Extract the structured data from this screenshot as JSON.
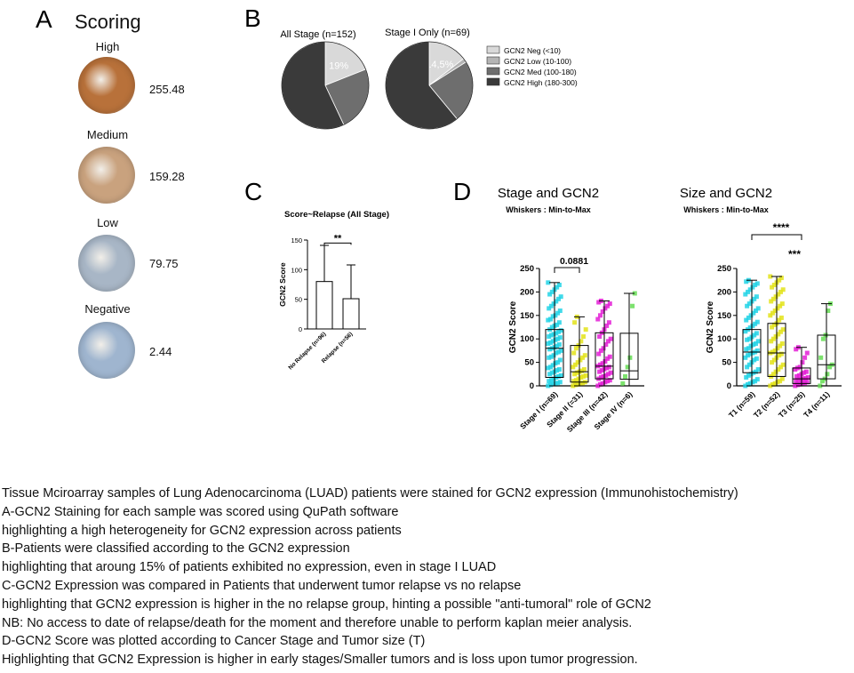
{
  "panel_a": {
    "letter": "A",
    "title": "Scoring",
    "samples": [
      {
        "label": "High",
        "score": "255.48",
        "color": "#b8713a"
      },
      {
        "label": "Medium",
        "score": "159.28",
        "color": "#c9a27e"
      },
      {
        "label": "Low",
        "score": "79.75",
        "color": "#a8b6c6"
      },
      {
        "label": "Negative",
        "score": "2.44",
        "color": "#9fb5cf"
      }
    ]
  },
  "panel_b": {
    "letter": "B"
  },
  "panel_c": {
    "letter": "C"
  },
  "panel_d": {
    "letter": "D"
  },
  "chart_data": [
    {
      "type": "pie",
      "title": "All Stage (n=152)",
      "categories": [
        "GCN2 Neg (<10)",
        "GCN2 Low (10-100)",
        "GCN2 Med (100-180)",
        "GCN2 High (180-300)"
      ],
      "values": [
        19,
        0,
        24,
        57
      ],
      "slice_labels": [
        "19%",
        "",
        "",
        ""
      ],
      "colors": [
        "#d9d9d9",
        "#b4b4b4",
        "#6e6e6e",
        "#3a3a3a"
      ],
      "legend": "right"
    },
    {
      "type": "pie",
      "title": "Stage I Only (n=69)",
      "categories": [
        "GCN2 Neg (<10)",
        "GCN2 Low (10-100)",
        "GCN2 Med (100-180)",
        "GCN2 High (180-300)"
      ],
      "values": [
        14.5,
        1.5,
        23,
        61
      ],
      "slice_labels": [
        "14,5%",
        "",
        "",
        ""
      ],
      "colors": [
        "#d9d9d9",
        "#b4b4b4",
        "#6e6e6e",
        "#3a3a3a"
      ],
      "legend": "right"
    },
    {
      "type": "bar",
      "title": "Score~Relapse (All Stage)",
      "ylabel": "GCN2 Score",
      "categories": [
        "No Relapse (n=96)",
        "Relapse (n=56)"
      ],
      "values": [
        80,
        51
      ],
      "error_upper": [
        141,
        108
      ],
      "ylim": [
        0,
        150
      ],
      "yticks": [
        0,
        50,
        100,
        150
      ],
      "significance": "**"
    },
    {
      "type": "scatter",
      "title": "Stage and GCN2",
      "subtitle": "Whiskers : Min-to-Max",
      "ylabel": "GCN2 Score",
      "ylim": [
        0,
        250
      ],
      "yticks": [
        0,
        50,
        100,
        150,
        200,
        250
      ],
      "categories": [
        "Stage I (n=69)",
        "Stage II (=31)",
        "Stage III (n=42)",
        "Stage IV (n=6)"
      ],
      "colors": [
        "#22d3e6",
        "#e3e31a",
        "#e41fd6",
        "#66dd55"
      ],
      "boxes": [
        {
          "min": 0,
          "q1": 18,
          "median": 80,
          "q3": 120,
          "max": 220
        },
        {
          "min": 0,
          "q1": 8,
          "median": 30,
          "q3": 86,
          "max": 147
        },
        {
          "min": 0,
          "q1": 15,
          "median": 42,
          "q3": 113,
          "max": 181
        },
        {
          "min": 0,
          "q1": 14,
          "median": 32,
          "q3": 112,
          "max": 197
        }
      ],
      "points": [
        [
          0,
          2,
          4,
          5,
          6,
          8,
          10,
          12,
          15,
          18,
          20,
          22,
          25,
          28,
          30,
          33,
          35,
          38,
          40,
          44,
          48,
          50,
          55,
          60,
          62,
          65,
          70,
          72,
          75,
          78,
          80,
          82,
          85,
          88,
          90,
          92,
          95,
          98,
          100,
          103,
          105,
          108,
          110,
          112,
          115,
          118,
          120,
          125,
          128,
          130,
          135,
          140,
          142,
          148,
          150,
          155,
          160,
          165,
          170,
          175,
          180,
          185,
          190,
          195,
          200,
          205,
          210,
          215,
          220
        ],
        [
          0,
          2,
          3,
          5,
          6,
          8,
          10,
          12,
          15,
          18,
          20,
          22,
          25,
          28,
          30,
          32,
          35,
          40,
          45,
          50,
          55,
          60,
          65,
          70,
          80,
          86,
          95,
          105,
          120,
          135,
          147
        ],
        [
          0,
          3,
          5,
          8,
          10,
          12,
          15,
          18,
          20,
          22,
          25,
          28,
          30,
          33,
          36,
          38,
          40,
          42,
          45,
          48,
          52,
          58,
          62,
          68,
          75,
          80,
          88,
          95,
          100,
          105,
          113,
          120,
          128,
          135,
          142,
          150,
          158,
          165,
          170,
          175,
          178,
          181
        ],
        [
          5,
          20,
          40,
          60,
          170,
          197
        ]
      ],
      "annotations": [
        {
          "text": "0.0881",
          "between": [
            0,
            1
          ]
        }
      ]
    },
    {
      "type": "scatter",
      "title": "Size and GCN2",
      "subtitle": "Whiskers : Min-to-Max",
      "ylabel": "GCN2 Score",
      "ylim": [
        0,
        250
      ],
      "yticks": [
        0,
        50,
        100,
        150,
        200,
        250
      ],
      "categories": [
        "T1 (n=59)",
        "T2 (n=52)",
        "T3 (n=25)",
        "T4 (n=11)"
      ],
      "colors": [
        "#22d3e6",
        "#e3e31a",
        "#e41fd6",
        "#66dd55"
      ],
      "boxes": [
        {
          "min": 0,
          "q1": 28,
          "median": 72,
          "q3": 120,
          "max": 225
        },
        {
          "min": 0,
          "q1": 20,
          "median": 70,
          "q3": 133,
          "max": 233
        },
        {
          "min": 0,
          "q1": 5,
          "median": 15,
          "q3": 38,
          "max": 82
        },
        {
          "min": 0,
          "q1": 15,
          "median": 45,
          "q3": 108,
          "max": 175
        }
      ],
      "points": [
        [
          0,
          3,
          5,
          8,
          10,
          14,
          18,
          22,
          25,
          28,
          30,
          35,
          40,
          45,
          50,
          55,
          58,
          60,
          65,
          68,
          70,
          72,
          75,
          78,
          80,
          85,
          88,
          90,
          95,
          98,
          100,
          104,
          108,
          112,
          116,
          120,
          124,
          128,
          132,
          136,
          140,
          145,
          150,
          155,
          160,
          165,
          170,
          175,
          180,
          185,
          190,
          195,
          200,
          205,
          210,
          215,
          218,
          222,
          225
        ],
        [
          0,
          3,
          5,
          8,
          10,
          15,
          20,
          25,
          30,
          35,
          40,
          45,
          50,
          55,
          60,
          65,
          68,
          70,
          72,
          75,
          80,
          85,
          90,
          95,
          100,
          105,
          110,
          115,
          120,
          125,
          130,
          133,
          140,
          145,
          150,
          155,
          160,
          165,
          170,
          175,
          180,
          185,
          190,
          195,
          200,
          205,
          210,
          215,
          220,
          225,
          230,
          233
        ],
        [
          0,
          2,
          3,
          5,
          6,
          8,
          10,
          12,
          14,
          15,
          16,
          18,
          20,
          22,
          25,
          28,
          30,
          35,
          38,
          40,
          50,
          60,
          70,
          78,
          82
        ],
        [
          0,
          10,
          15,
          25,
          40,
          45,
          60,
          100,
          108,
          160,
          175
        ]
      ],
      "annotations": [
        {
          "text": "****",
          "between": [
            0,
            2
          ]
        },
        {
          "text": "***",
          "between": [
            1,
            2
          ]
        }
      ]
    }
  ],
  "caption": [
    "Tissue Mciroarray samples of Lung Adenocarcinoma (LUAD) patients were stained for GCN2 expression (Immunohistochemistry)",
    "A-GCN2 Staining for each sample was scored using QuPath software",
    "highlighting a high heterogeneity for GCN2 expression across patients",
    "B-Patients were classified according to the GCN2 expression",
    "highlighting that aroung 15% of patients exhibited no expression, even in stage I LUAD",
    "C-GCN2 Expression was compared in Patients that underwent tumor relapse vs no relapse",
    "highlighting that GCN2 expression is higher in the no relapse group, hinting a possible \"anti-tumoral\" role of GCN2",
    "NB: No access to date of relapse/death for the moment and therefore unable to perform kaplan meier analysis.",
    "D-GCN2 Score was plotted according to Cancer Stage and Tumor size (T)",
    "Highlighting that GCN2 Expression is higher in early stages/Smaller tumors and is loss upon tumor progression."
  ]
}
